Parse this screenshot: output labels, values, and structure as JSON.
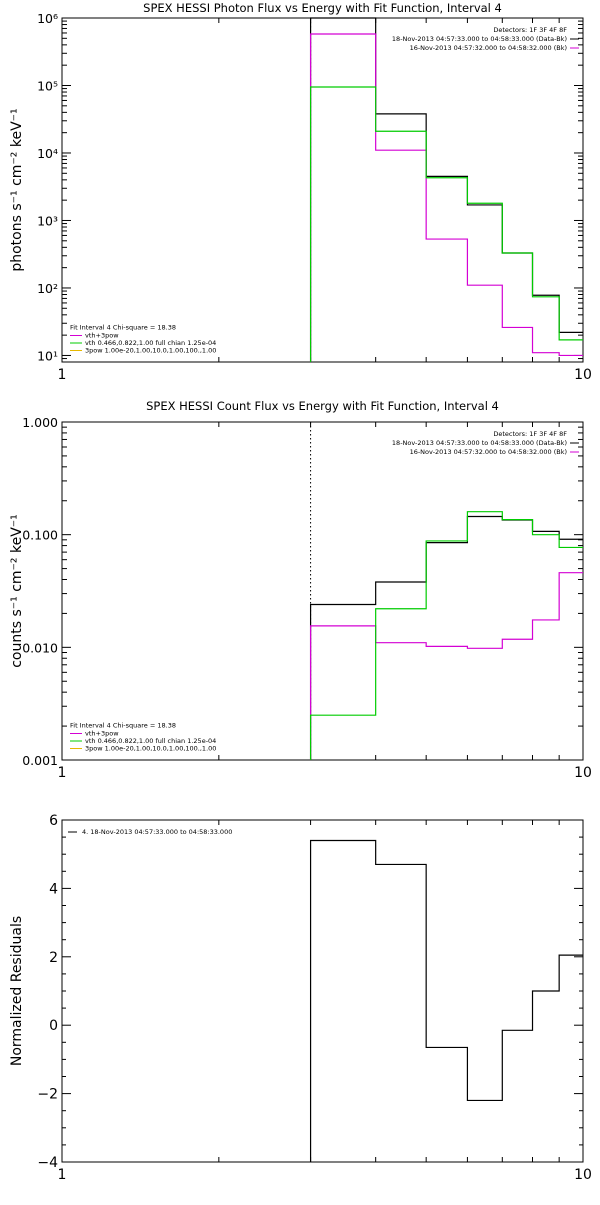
{
  "chart_data": [
    {
      "type": "line",
      "title": "SPEX HESSI Photon Flux vs Energy with Fit Function, Interval 4",
      "ylabel": "photons s⁻¹ cm⁻² keV⁻¹",
      "xlabel": "",
      "x_scale": "log",
      "y_scale": "log",
      "xlim": [
        1,
        10
      ],
      "ylim": [
        8,
        1000000
      ],
      "x_ticks": [
        {
          "value": 1,
          "label": "1"
        },
        {
          "value": 10,
          "label": "10"
        }
      ],
      "y_ticks": [
        {
          "value": 10,
          "label": "10¹"
        },
        {
          "value": 100,
          "label": "10²"
        },
        {
          "value": 1000,
          "label": "10³"
        },
        {
          "value": 10000,
          "label": "10⁴"
        },
        {
          "value": 100000,
          "label": "10⁵"
        },
        {
          "value": 1000000,
          "label": "10⁶"
        }
      ],
      "vline_x": 3.0,
      "bin_edges": [
        3.0,
        4.0,
        5.0,
        6.0,
        7.0,
        8.0,
        9.0,
        10.0
      ],
      "series": [
        {
          "name": "data",
          "color": "#000000",
          "values": [
            1000000,
            38000,
            4500,
            1700,
            330,
            78,
            22
          ]
        },
        {
          "name": "vth+3pow",
          "color": "#d400d4",
          "values": [
            580000,
            11000,
            530,
            110,
            26,
            11,
            10
          ]
        },
        {
          "name": "vth",
          "color": "#00cc00",
          "values": [
            95000,
            21000,
            4300,
            1800,
            330,
            74,
            17
          ]
        }
      ],
      "legend_top": {
        "position": "top-right",
        "lines": [
          {
            "text": "Detectors: 1F 3F 4F 8F",
            "color": ""
          },
          {
            "text": "18-Nov-2013 04:57:33.000 to 04:58:33.000 (Data-Bk)",
            "color": "#000000"
          },
          {
            "text": "16-Nov-2013 04:57:32.000 to 04:58:32.000 (Bk)",
            "color": "#d400d4"
          }
        ]
      },
      "legend_bottom": {
        "position": "bottom-left",
        "header": "Fit Interval 4    Chi-square = 18.38",
        "lines": [
          {
            "text": "vth+3pow",
            "color": "#d400d4"
          },
          {
            "text": "vth 0.466,0.822,1.00  full chian 1.25e-04",
            "color": "#00cc00"
          },
          {
            "text": "3pow 1.00e-20,1.00,10.0,1.00,100.,1.00",
            "color": "#e6b800"
          }
        ]
      }
    },
    {
      "type": "line",
      "title": "SPEX HESSI Count Flux vs Energy with Fit Function, Interval 4",
      "ylabel": "counts s⁻¹ cm⁻² keV⁻¹",
      "xlabel": "",
      "x_scale": "log",
      "y_scale": "log",
      "xlim": [
        1,
        10
      ],
      "ylim": [
        0.001,
        1.0
      ],
      "x_ticks": [
        {
          "value": 1,
          "label": "1"
        },
        {
          "value": 10,
          "label": "10"
        }
      ],
      "y_ticks": [
        {
          "value": 0.001,
          "label": "0.001"
        },
        {
          "value": 0.01,
          "label": "0.010"
        },
        {
          "value": 0.1,
          "label": "0.100"
        },
        {
          "value": 1.0,
          "label": "1.000"
        }
      ],
      "vline_x": 3.0,
      "bin_edges": [
        3.0,
        4.0,
        5.0,
        6.0,
        7.0,
        8.0,
        9.0,
        10.0
      ],
      "series": [
        {
          "name": "data",
          "color": "#000000",
          "values": [
            0.024,
            0.038,
            0.085,
            0.145,
            0.135,
            0.107,
            0.091
          ]
        },
        {
          "name": "vth+3pow",
          "color": "#d400d4",
          "values": [
            0.0155,
            0.011,
            0.0102,
            0.0098,
            0.0118,
            0.0175,
            0.046
          ]
        },
        {
          "name": "vth",
          "color": "#00cc00",
          "values": [
            0.0025,
            0.022,
            0.088,
            0.16,
            0.136,
            0.1,
            0.077
          ]
        }
      ],
      "legend_top": {
        "position": "top-right",
        "lines": [
          {
            "text": "Detectors: 1F 3F 4F 8F",
            "color": ""
          },
          {
            "text": "18-Nov-2013 04:57:33.000 to 04:58:33.000 (Data-Bk)",
            "color": "#000000"
          },
          {
            "text": "16-Nov-2013 04:57:32.000 to 04:58:32.000 (Bk)",
            "color": "#d400d4"
          }
        ]
      },
      "legend_bottom": {
        "position": "bottom-left",
        "header": "Fit Interval 4    Chi-square = 18.38",
        "lines": [
          {
            "text": "vth+3pow",
            "color": "#d400d4"
          },
          {
            "text": "vth 0.466,0.822,1.00  full chian 1.25e-04",
            "color": "#00cc00"
          },
          {
            "text": "3pow 1.00e-20,1.00,10.0,1.00,100.,1.00",
            "color": "#e6b800"
          }
        ]
      }
    },
    {
      "type": "line",
      "title": "",
      "ylabel": "Normalized Residuals",
      "xlabel": "",
      "x_scale": "log",
      "y_scale": "linear",
      "xlim": [
        1,
        10
      ],
      "ylim": [
        -4,
        6
      ],
      "x_ticks": [
        {
          "value": 1,
          "label": "1"
        },
        {
          "value": 10,
          "label": "10"
        }
      ],
      "y_ticks": [
        {
          "value": -4,
          "label": "−4"
        },
        {
          "value": -2,
          "label": "−2"
        },
        {
          "value": 0,
          "label": "0"
        },
        {
          "value": 2,
          "label": "2"
        },
        {
          "value": 4,
          "label": "4"
        },
        {
          "value": 6,
          "label": "6"
        }
      ],
      "bin_edges": [
        3.0,
        4.0,
        5.0,
        6.0,
        7.0,
        8.0,
        9.0,
        10.0
      ],
      "series": [
        {
          "name": "residuals",
          "color": "#000000",
          "values": [
            5.4,
            4.7,
            -0.65,
            -2.2,
            -0.15,
            1.0,
            2.05
          ]
        }
      ],
      "legend_top": {
        "position": "top-left",
        "lines": [
          {
            "text": "4. 18-Nov-2013 04:57:33.000 to 04:58:33.000",
            "color": "#000000"
          }
        ]
      }
    }
  ]
}
